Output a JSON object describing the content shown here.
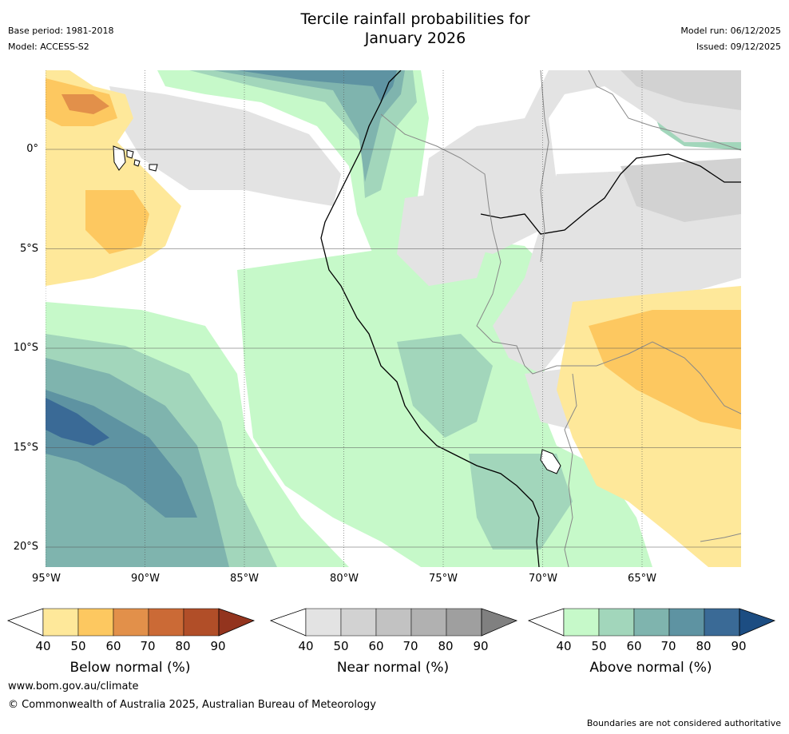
{
  "header": {
    "title_line1": "Tercile rainfall probabilities for",
    "title_line2": "January 2026",
    "base_period": "Base period: 1981-2018",
    "model": "Model: ACCESS-S2",
    "model_run": "Model run: 06/12/2025",
    "issued": "Issued: 09/12/2025"
  },
  "map": {
    "lat_labels": [
      "0°",
      "5°S",
      "10°S",
      "15°S",
      "20°S"
    ],
    "lon_labels": [
      "95°W",
      "90°W",
      "85°W",
      "80°W",
      "75°W",
      "70°W",
      "65°W"
    ]
  },
  "colorbars": [
    {
      "label": "Below normal (%)",
      "ticks": [
        "40",
        "50",
        "60",
        "70",
        "80",
        "90"
      ],
      "colors": [
        "#ffffff",
        "#fee89a",
        "#fdc860",
        "#e2904a",
        "#cb6a36",
        "#b14e28",
        "#93341e"
      ]
    },
    {
      "label": "Near normal (%)",
      "ticks": [
        "40",
        "50",
        "60",
        "70",
        "80",
        "90"
      ],
      "colors": [
        "#ffffff",
        "#e3e3e3",
        "#d2d2d2",
        "#c2c2c2",
        "#b1b1b1",
        "#9f9f9f",
        "#808080"
      ]
    },
    {
      "label": "Above normal (%)",
      "ticks": [
        "40",
        "50",
        "60",
        "70",
        "80",
        "90"
      ],
      "colors": [
        "#ffffff",
        "#c6f9c9",
        "#a2d6bb",
        "#7fb4ae",
        "#5e93a2",
        "#3a6a96",
        "#1c4d82"
      ]
    }
  ],
  "footer": {
    "website": "www.bom.gov.au/climate",
    "copyright": "© Commonwealth of Australia 2025, Australian Bureau of Meteorology",
    "disclaimer": "Boundaries are not considered authoritative"
  }
}
